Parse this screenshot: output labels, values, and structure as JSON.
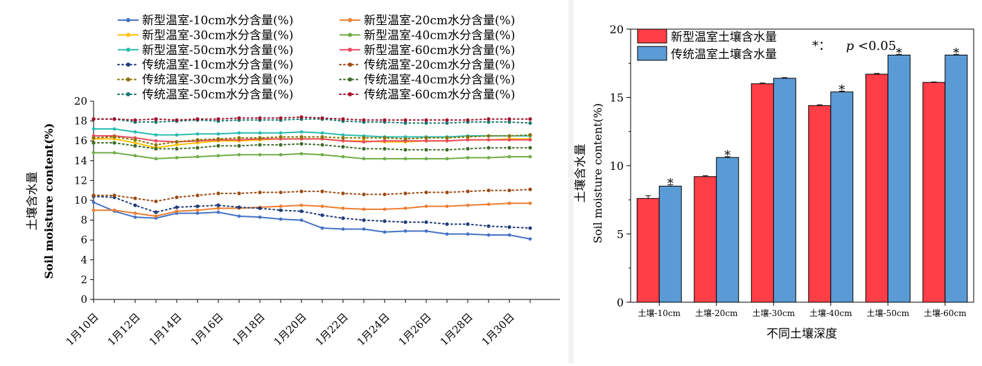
{
  "chart_data": [
    {
      "type": "line",
      "ylabel": "土壤含水量",
      "ylabel2": "Soil moisture content(%)",
      "ylim": [
        0,
        20
      ],
      "y_ticks": [
        "0",
        "2",
        "4",
        "6",
        "8",
        "10",
        "12",
        "14",
        "16",
        "18",
        "20"
      ],
      "x": [
        "1月10日",
        "1月11日",
        "1月12日",
        "1月13日",
        "1月14日",
        "1月15日",
        "1月16日",
        "1月17日",
        "1月18日",
        "1月19日",
        "1月20日",
        "1月21日",
        "1月22日",
        "1月23日",
        "1月24日",
        "1月25日",
        "1月26日",
        "1月27日",
        "1月28日",
        "1月29日",
        "1月30日",
        "1月31日"
      ],
      "x_tick_labels": [
        "1月10日",
        "1月12日",
        "1月14日",
        "1月16日",
        "1月18日",
        "1月20日",
        "1月22日",
        "1月24日",
        "1月26日",
        "1月28日",
        "1月30日"
      ],
      "legend_position": "top",
      "grid": false,
      "series": [
        {
          "name": "新型温室-10cm水分含量(%)",
          "color": "#4472c4",
          "style": "solid",
          "values": [
            9.8,
            8.9,
            8.3,
            8.2,
            8.7,
            8.7,
            8.8,
            8.4,
            8.3,
            8.1,
            8.0,
            7.2,
            7.1,
            7.1,
            6.8,
            6.9,
            6.9,
            6.6,
            6.6,
            6.5,
            6.5,
            6.1
          ]
        },
        {
          "name": "新型温室-20cm水分含量(%)",
          "color": "#ed7d31",
          "style": "solid",
          "values": [
            9.0,
            9.0,
            8.7,
            8.4,
            8.9,
            9.0,
            9.2,
            9.2,
            9.3,
            9.4,
            9.5,
            9.4,
            9.2,
            9.1,
            9.1,
            9.2,
            9.4,
            9.4,
            9.5,
            9.6,
            9.7,
            9.7
          ]
        },
        {
          "name": "新型温室-30cm水分含量(%)",
          "color": "#ffc000",
          "style": "solid",
          "values": [
            16.2,
            16.2,
            15.8,
            15.3,
            15.6,
            15.8,
            16.0,
            16.0,
            16.1,
            16.2,
            16.2,
            16.2,
            16.0,
            16.0,
            15.9,
            15.9,
            16.0,
            16.0,
            16.1,
            16.1,
            16.2,
            16.2
          ]
        },
        {
          "name": "新型温室-40cm水分含量(%)",
          "color": "#70ad47",
          "style": "solid",
          "values": [
            14.8,
            14.8,
            14.5,
            14.2,
            14.3,
            14.4,
            14.5,
            14.6,
            14.6,
            14.6,
            14.7,
            14.6,
            14.4,
            14.2,
            14.2,
            14.2,
            14.2,
            14.2,
            14.3,
            14.3,
            14.4,
            14.4
          ]
        },
        {
          "name": "新型温室-50cm水分含量(%)",
          "color": "#2bbcb0",
          "style": "solid",
          "values": [
            17.2,
            17.2,
            16.9,
            16.6,
            16.6,
            16.7,
            16.7,
            16.8,
            16.8,
            16.8,
            16.9,
            16.8,
            16.6,
            16.5,
            16.4,
            16.4,
            16.4,
            16.4,
            16.5,
            16.5,
            16.5,
            16.5
          ]
        },
        {
          "name": "新型温室-60cm水分含量(%)",
          "color": "#e84a5f",
          "style": "solid",
          "values": [
            16.5,
            16.5,
            16.3,
            16.0,
            15.9,
            16.0,
            16.1,
            16.1,
            16.2,
            16.2,
            16.2,
            16.2,
            16.0,
            15.9,
            16.0,
            16.0,
            16.0,
            16.0,
            16.1,
            16.1,
            16.1,
            16.1
          ]
        },
        {
          "name": "传统温室-10cm水分含量(%)",
          "color": "#203c7a",
          "style": "dotted",
          "values": [
            10.4,
            10.3,
            9.5,
            8.8,
            9.3,
            9.4,
            9.5,
            9.3,
            9.2,
            9.0,
            8.9,
            8.5,
            8.2,
            8.0,
            7.9,
            7.8,
            7.8,
            7.6,
            7.6,
            7.4,
            7.3,
            7.2
          ]
        },
        {
          "name": "传统温室-20cm水分含量(%)",
          "color": "#9c4a12",
          "style": "dotted",
          "values": [
            10.5,
            10.5,
            10.2,
            9.9,
            10.3,
            10.5,
            10.7,
            10.7,
            10.8,
            10.8,
            10.9,
            10.9,
            10.7,
            10.6,
            10.6,
            10.7,
            10.8,
            10.8,
            10.9,
            11.0,
            11.0,
            11.1
          ]
        },
        {
          "name": "传统温室-30cm水分含量(%)",
          "color": "#8a7300",
          "style": "dotted",
          "values": [
            16.3,
            16.4,
            16.1,
            15.6,
            15.9,
            16.1,
            16.2,
            16.3,
            16.3,
            16.4,
            16.4,
            16.4,
            16.3,
            16.3,
            16.3,
            16.2,
            16.3,
            16.3,
            16.4,
            16.5,
            16.5,
            16.6
          ]
        },
        {
          "name": "传统温室-40cm水分含量(%)",
          "color": "#3d6b26",
          "style": "dotted",
          "values": [
            15.8,
            15.8,
            15.5,
            15.2,
            15.2,
            15.3,
            15.5,
            15.5,
            15.6,
            15.6,
            15.7,
            15.6,
            15.4,
            15.2,
            15.2,
            15.1,
            15.1,
            15.1,
            15.2,
            15.3,
            15.3,
            15.3
          ]
        },
        {
          "name": "传统温室-50cm水分含量(%)",
          "color": "#1a7870",
          "style": "dotted",
          "values": [
            18.2,
            18.2,
            17.9,
            17.9,
            18.0,
            18.1,
            18.0,
            18.1,
            18.1,
            18.1,
            18.2,
            18.2,
            18.0,
            17.9,
            17.9,
            17.8,
            17.8,
            17.8,
            17.9,
            17.9,
            17.9,
            17.8
          ]
        },
        {
          "name": "传统温室-60cm水分含量(%)",
          "color": "#a3122e",
          "style": "dotted",
          "values": [
            18.2,
            18.2,
            18.1,
            18.2,
            18.1,
            18.2,
            18.2,
            18.3,
            18.3,
            18.3,
            18.4,
            18.3,
            18.2,
            18.1,
            18.1,
            18.1,
            18.1,
            18.1,
            18.1,
            18.2,
            18.2,
            18.2
          ]
        }
      ]
    },
    {
      "type": "bar",
      "xlabel": "不同土壤深度",
      "ylabel": "土壤含水量",
      "ylabel2": "Soil moisture content(%)",
      "ylim": [
        0,
        20
      ],
      "y_ticks": [
        "0",
        "5",
        "10",
        "15",
        "20"
      ],
      "categories": [
        "土壤-10cm",
        "土壤-20cm",
        "土壤-30cm",
        "土壤-40cm",
        "土壤-50cm",
        "土壤-60cm"
      ],
      "legend_position": "top-left",
      "annotation": "*：",
      "annotation_p": "p",
      "annotation_rest": "<0.05",
      "series": [
        {
          "name": "新型温室土壤含水量",
          "color": "#ff3e47",
          "values": [
            7.6,
            9.2,
            16.0,
            14.4,
            16.7,
            16.1
          ],
          "errors": [
            0.2,
            0.06,
            0.05,
            0.06,
            0.05,
            0.03
          ],
          "marks": [
            "",
            "",
            "",
            "",
            "",
            ""
          ]
        },
        {
          "name": "传统温室土壤含水量",
          "color": "#5b9bd5",
          "values": [
            8.5,
            10.6,
            16.4,
            15.4,
            18.1,
            18.1
          ],
          "errors": [
            0.1,
            0.06,
            0.05,
            0.06,
            0.04,
            0.04
          ],
          "marks": [
            "*",
            "*",
            "",
            "*",
            "*",
            "*"
          ]
        }
      ]
    }
  ]
}
